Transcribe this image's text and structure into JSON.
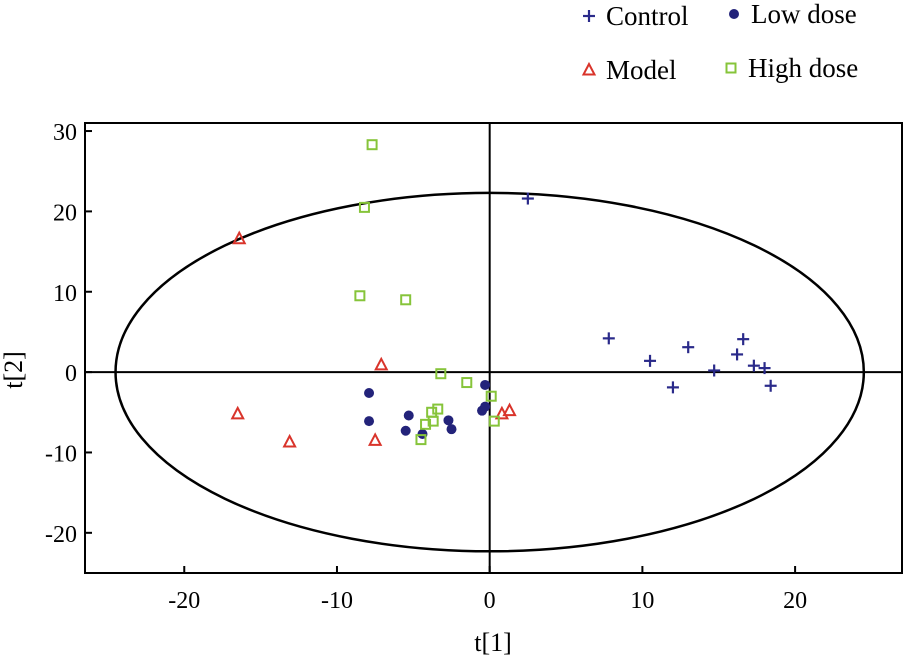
{
  "chart_data": {
    "type": "scatter",
    "title": "",
    "xlabel": "t[1]",
    "ylabel": "t[2]",
    "xlim": [
      -26.5,
      27
    ],
    "ylim": [
      -25,
      31
    ],
    "x_ticks": [
      -20,
      -10,
      0,
      10,
      20
    ],
    "y_ticks": [
      -20,
      -10,
      0,
      10,
      20,
      30
    ],
    "x_tick_labels": [
      "-20",
      "-10",
      "0",
      "10",
      "20"
    ],
    "y_tick_labels": [
      "-20",
      "-10",
      "0",
      "10",
      "20",
      "30"
    ],
    "grid": false,
    "legend_position": "top-right",
    "ellipse": {
      "cx": 0,
      "cy": 0,
      "rx": 24.5,
      "ry": 22.3
    },
    "series": [
      {
        "name": "Control",
        "marker": "plus",
        "color": "#2a2a8a",
        "points": [
          [
            2.5,
            21.6
          ],
          [
            7.8,
            4.2
          ],
          [
            10.5,
            1.4
          ],
          [
            12.0,
            -1.9
          ],
          [
            13.0,
            3.1
          ],
          [
            14.7,
            0.2
          ],
          [
            16.2,
            2.2
          ],
          [
            16.6,
            4.1
          ],
          [
            17.3,
            0.8
          ],
          [
            18.0,
            0.5
          ],
          [
            18.4,
            -1.7
          ]
        ]
      },
      {
        "name": "Low dose",
        "marker": "circle",
        "color": "#23237a",
        "points": [
          [
            -7.9,
            -2.6
          ],
          [
            -7.9,
            -6.1
          ],
          [
            -5.3,
            -5.4
          ],
          [
            -5.5,
            -7.3
          ],
          [
            -4.4,
            -7.7
          ],
          [
            -2.7,
            -6.0
          ],
          [
            -2.5,
            -7.1
          ],
          [
            -0.5,
            -4.8
          ],
          [
            -0.3,
            -4.3
          ],
          [
            -0.3,
            -1.6
          ]
        ]
      },
      {
        "name": "Model",
        "marker": "triangle",
        "color": "#d9342b",
        "points": [
          [
            -16.4,
            16.6
          ],
          [
            -7.1,
            0.9
          ],
          [
            -16.5,
            -5.2
          ],
          [
            -13.1,
            -8.7
          ],
          [
            -7.5,
            -8.5
          ],
          [
            0.8,
            -5.2
          ],
          [
            1.3,
            -4.8
          ]
        ]
      },
      {
        "name": "High dose",
        "marker": "square",
        "color": "#86c43a",
        "points": [
          [
            -7.7,
            28.3
          ],
          [
            -8.2,
            20.5
          ],
          [
            -8.5,
            9.5
          ],
          [
            -5.5,
            9.0
          ],
          [
            -3.2,
            -0.2
          ],
          [
            -1.5,
            -1.3
          ],
          [
            0.1,
            -3.0
          ],
          [
            -3.4,
            -4.6
          ],
          [
            -3.8,
            -5.0
          ],
          [
            -3.7,
            -6.1
          ],
          [
            -4.2,
            -6.5
          ],
          [
            0.3,
            -6.1
          ],
          [
            -4.5,
            -8.4
          ]
        ]
      }
    ]
  }
}
